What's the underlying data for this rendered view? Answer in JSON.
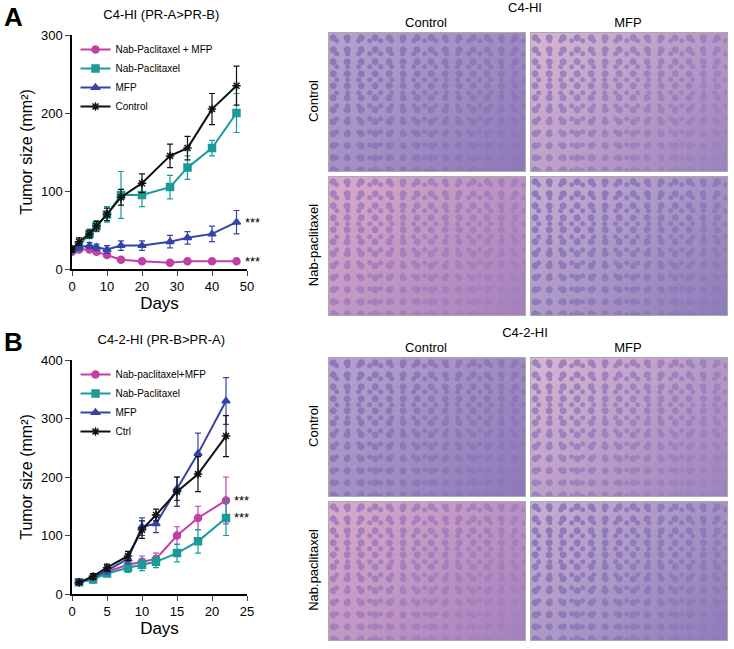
{
  "chart_data": [
    {
      "type": "line",
      "title": "C4-HI (PR-A>PR-B)",
      "x_label": "Days",
      "y_label": "Tumor size (mm²)",
      "xlim": [
        0,
        50
      ],
      "xticks": [
        0,
        10,
        20,
        30,
        40,
        50
      ],
      "ylim": [
        0,
        300
      ],
      "yticks": [
        0,
        100,
        200,
        300
      ],
      "grid": false,
      "legend": "top-left",
      "x": [
        0,
        2,
        5,
        7,
        10,
        14,
        20,
        28,
        33,
        40,
        47
      ],
      "series": [
        {
          "name": "Nab-Paclitaxel + MFP",
          "color": "#c23fa6",
          "marker": "circle",
          "values": [
            22,
            25,
            25,
            22,
            18,
            12,
            10,
            8,
            10,
            10,
            10
          ],
          "errors": [
            3,
            3,
            3,
            3,
            3,
            2,
            2,
            2,
            2,
            2,
            2
          ]
        },
        {
          "name": "Nab-Paclitaxel",
          "color": "#1b9a9a",
          "marker": "square",
          "values": [
            25,
            30,
            45,
            55,
            70,
            95,
            95,
            105,
            130,
            155,
            200
          ],
          "errors": [
            3,
            4,
            6,
            7,
            10,
            30,
            15,
            15,
            15,
            10,
            25
          ]
        },
        {
          "name": "MFP",
          "color": "#3444a6",
          "marker": "triangle-up",
          "values": [
            25,
            28,
            30,
            28,
            25,
            30,
            30,
            35,
            40,
            45,
            60
          ],
          "errors": [
            3,
            4,
            4,
            4,
            5,
            6,
            6,
            8,
            8,
            10,
            15
          ]
        },
        {
          "name": "Control",
          "color": "#111111",
          "marker": "asterisk",
          "values": [
            25,
            35,
            45,
            55,
            70,
            92,
            110,
            145,
            155,
            205,
            235
          ],
          "errors": [
            3,
            5,
            5,
            6,
            8,
            10,
            12,
            15,
            15,
            20,
            25
          ]
        }
      ],
      "annotations": [
        {
          "x": 47,
          "y": 60,
          "text": "***"
        },
        {
          "x": 47,
          "y": 10,
          "text": "***"
        }
      ]
    },
    {
      "type": "line",
      "title": "C4-2-HI (PR-B>PR-A)",
      "x_label": "Days",
      "y_label": "Tumor size (mm²)",
      "xlim": [
        0,
        25
      ],
      "xticks": [
        0,
        5,
        10,
        15,
        20,
        25
      ],
      "ylim": [
        0,
        400
      ],
      "yticks": [
        0,
        100,
        200,
        300,
        400
      ],
      "grid": false,
      "legend": "top-left",
      "x": [
        1,
        3,
        5,
        8,
        10,
        12,
        15,
        18,
        22
      ],
      "series": [
        {
          "name": "Nab-paclitaxel+MFP",
          "color": "#c23fa6",
          "marker": "circle",
          "values": [
            20,
            25,
            38,
            50,
            55,
            60,
            100,
            130,
            160
          ],
          "errors": [
            3,
            4,
            5,
            8,
            10,
            10,
            15,
            20,
            40
          ]
        },
        {
          "name": "Nab-Paclitaxel",
          "color": "#1b9a9a",
          "marker": "square",
          "values": [
            20,
            25,
            35,
            45,
            50,
            55,
            70,
            90,
            130
          ],
          "errors": [
            3,
            4,
            5,
            8,
            10,
            10,
            15,
            20,
            30
          ]
        },
        {
          "name": "MFP",
          "color": "#3444a6",
          "marker": "triangle-up",
          "values": [
            20,
            28,
            40,
            60,
            115,
            120,
            180,
            240,
            330
          ],
          "errors": [
            3,
            4,
            6,
            8,
            15,
            15,
            20,
            35,
            40
          ]
        },
        {
          "name": "Ctrl",
          "color": "#111111",
          "marker": "asterisk",
          "values": [
            20,
            30,
            45,
            65,
            110,
            135,
            175,
            205,
            270
          ],
          "errors": [
            3,
            5,
            6,
            8,
            15,
            10,
            25,
            30,
            35
          ]
        }
      ],
      "annotations": [
        {
          "x": 22,
          "y": 160,
          "text": "***"
        },
        {
          "x": 22,
          "y": 130,
          "text": "***"
        }
      ]
    }
  ],
  "panels": [
    {
      "label": "A",
      "image_title": "C4-HI",
      "columns": [
        "Control",
        "MFP"
      ],
      "rows": [
        "Control",
        "Nab-paclitaxel"
      ]
    },
    {
      "label": "B",
      "image_title": "C4-2-HI",
      "columns": [
        "Control",
        "MFP"
      ],
      "rows": [
        "Control",
        "Nab.paclitaxel"
      ]
    }
  ]
}
